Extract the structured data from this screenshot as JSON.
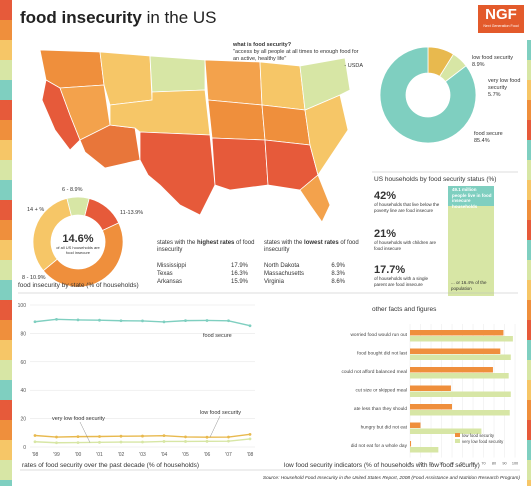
{
  "header": {
    "title_bold": "food insecurity",
    "title_rest": " in the US"
  },
  "logo": {
    "text": "NGF",
    "tagline": "Next Generation Food"
  },
  "definition": {
    "heading": "what is food security?",
    "quote": "\"access by all people at all times to enough food for an active, healthy life\"",
    "source": "- USDA"
  },
  "top_pie_labels": {
    "low": {
      "name": "low food security",
      "value": "8.9%"
    },
    "very_low": {
      "name": "very low food security",
      "value": "5.7%"
    },
    "secure": {
      "name": "food secure",
      "value": "85.4%"
    }
  },
  "status_section": {
    "title": "US households by food security status (%)",
    "stats": [
      {
        "value": "42%",
        "text": "of households that live below the poverty line are food insecure"
      },
      {
        "value": "21%",
        "text": "of households with children are food insecure"
      },
      {
        "value": "17.7%",
        "text": "of households with a single parent are food insecure"
      }
    ],
    "bar_top_text": "49.1 million people live in food insecure households",
    "bar_bottom_text": "... or 16.4% of the population"
  },
  "donut": {
    "center_value": "14.6%",
    "center_text": "of all US households are food insecure",
    "labels": [
      "6 - 8.9%",
      "14 + %",
      "11-13.9%",
      "8 - 10.9%"
    ]
  },
  "highest": {
    "title_pre": "states with the ",
    "title_bold": "highest rates",
    "title_post": " of food insecurity",
    "rows": [
      [
        "Mississippi",
        "17.9%"
      ],
      [
        "Texas",
        "16.3%"
      ],
      [
        "Arkansas",
        "15.9%"
      ]
    ]
  },
  "lowest": {
    "title_pre": "states with the ",
    "title_bold": "lowest rates",
    "title_post": " of food insecurity",
    "rows": [
      [
        "North Dakota",
        "6.9%"
      ],
      [
        "Massachusetts",
        "8.3%"
      ],
      [
        "Virginia",
        "8.6%"
      ]
    ]
  },
  "by_state_title": "food insecurity by state (% of households)",
  "decade_title": "rates of food security over the past decade (% of households)",
  "facts_title": "other facts and figures",
  "indicators_title": "low food security indicators (% of households with low food security)",
  "source_text": "Source: Household Food Insecurity in the United States Report, 2008 (Food Assistance and Nutrition Research Program)",
  "colors": {
    "secure": "#7fcfc0",
    "low": "#e8b94e",
    "very_low": "#d7e6a5",
    "orange": "#ef8f3c",
    "red": "#e65a3a",
    "yellow": "#f6c667"
  },
  "chart_data": [
    {
      "type": "pie",
      "title": "",
      "labels": [
        "low food security",
        "very low food security",
        "food secure"
      ],
      "values": [
        8.9,
        5.7,
        85.4
      ]
    },
    {
      "type": "line",
      "title": "rates of food security over the past decade (% of households)",
      "x": [
        "'98",
        "'99",
        "'00",
        "'01",
        "'02",
        "'03",
        "'04",
        "'05",
        "'06",
        "'07",
        "'08"
      ],
      "ylim": [
        0,
        100
      ],
      "yticks": [
        0,
        20,
        40,
        60,
        80,
        100
      ],
      "series": [
        {
          "name": "food secure",
          "values": [
            88.2,
            89.9,
            89.5,
            89.3,
            88.9,
            88.8,
            88.1,
            89.0,
            89.1,
            88.9,
            85.4
          ]
        },
        {
          "name": "low food security",
          "values": [
            8.1,
            7.0,
            7.3,
            7.4,
            7.6,
            7.7,
            8.0,
            7.1,
            6.9,
            7.0,
            8.9
          ]
        },
        {
          "name": "very low food security",
          "values": [
            3.7,
            3.0,
            3.1,
            3.3,
            3.5,
            3.5,
            3.9,
            3.9,
            4.0,
            4.1,
            5.7
          ]
        }
      ]
    },
    {
      "type": "bar",
      "title": "low food security indicators (% of households with low food security)",
      "categories": [
        "worried food would run out",
        "food bought did not last",
        "could not afford balanced meal",
        "cut size or skipped meal",
        "ate less than they should",
        "hungry but did not eat",
        "did not eat for a whole day"
      ],
      "xlim": [
        0,
        100
      ],
      "xticks": [
        0,
        10,
        20,
        30,
        40,
        50,
        60,
        70,
        80,
        90,
        100
      ],
      "series": [
        {
          "name": "low food security",
          "values": [
            89,
            86,
            79,
            39,
            40,
            10,
            1
          ]
        },
        {
          "name": "very low food security",
          "values": [
            98,
            96,
            94,
            96,
            95,
            68,
            27
          ]
        }
      ]
    }
  ]
}
